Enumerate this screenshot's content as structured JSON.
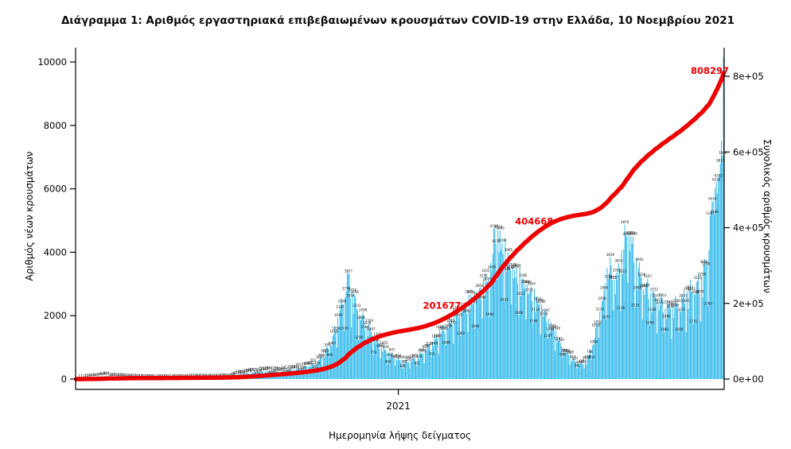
{
  "title": "Διάγραμμα 1: Αριθμός εργαστηριακά επιβεβαιωμένων κρουσμάτων COVID-19 στην Ελλάδα, 10 Νοεμβρίου 2021",
  "chart_data": {
    "type": "bar",
    "title": "Διάγραμμα 1: Αριθμός εργαστηριακά επιβεβαιωμένων κρουσμάτων COVID-19 στην Ελλάδα, 10 Νοεμβρίου 2021",
    "xlabel": "Ημερομηνία λήψης δείγματος",
    "ylabel_left": "Αριθμός νέων κρουσμάτων",
    "ylabel_right": "Συνολικός αριθμός κρουσμάτων",
    "y_left": {
      "ticks": [
        0,
        2000,
        4000,
        6000,
        8000,
        10000
      ],
      "labels": [
        "0",
        "2000",
        "4000",
        "6000",
        "8000",
        "10000"
      ],
      "max": 10000
    },
    "y_right": {
      "ticks": [
        0,
        200000,
        400000,
        600000,
        800000
      ],
      "labels": [
        "0e+00",
        "2e+05",
        "4e+05",
        "6e+05",
        "8e+05"
      ],
      "max": 800000
    },
    "x_ticks": [
      {
        "label": "2021",
        "t": 0.4976
      }
    ],
    "x_range": [
      "2020-02-26",
      "2021-11-10"
    ],
    "days": 624,
    "grid": false,
    "legend": "none",
    "bar_color": "#2ab7ea",
    "line_color": "#ed0000",
    "annotation_color": "#ed0000",
    "bar_label_color": "#101010",
    "cumulative_total": 808297,
    "weekly_pattern": [
      1.0,
      0.85,
      1.0,
      1.02,
      1.0,
      0.92,
      0.6
    ],
    "daily_new_anchors": [
      [
        0,
        3
      ],
      [
        8,
        20
      ],
      [
        15,
        45
      ],
      [
        22,
        75
      ],
      [
        27,
        95
      ],
      [
        35,
        70
      ],
      [
        45,
        45
      ],
      [
        60,
        25
      ],
      [
        75,
        16
      ],
      [
        90,
        14
      ],
      [
        105,
        22
      ],
      [
        120,
        30
      ],
      [
        135,
        33
      ],
      [
        148,
        50
      ],
      [
        157,
        151
      ],
      [
        168,
        205
      ],
      [
        182,
        258
      ],
      [
        196,
        240
      ],
      [
        210,
        310
      ],
      [
        222,
        410
      ],
      [
        232,
        520
      ],
      [
        240,
        860
      ],
      [
        247,
        1300
      ],
      [
        252,
        1900
      ],
      [
        256,
        2435
      ],
      [
        258,
        2556
      ],
      [
        261,
        3432
      ],
      [
        263,
        3049
      ],
      [
        266,
        2700
      ],
      [
        270,
        2300
      ],
      [
        277,
        1900
      ],
      [
        284,
        1500
      ],
      [
        291,
        1150
      ],
      [
        298,
        900
      ],
      [
        305,
        740
      ],
      [
        312,
        580
      ],
      [
        319,
        560
      ],
      [
        326,
        650
      ],
      [
        333,
        840
      ],
      [
        340,
        1050
      ],
      [
        347,
        1350
      ],
      [
        354,
        1630
      ],
      [
        361,
        1890
      ],
      [
        368,
        2150
      ],
      [
        375,
        2390
      ],
      [
        382,
        2600
      ],
      [
        389,
        2900
      ],
      [
        396,
        3250
      ],
      [
        399,
        3464
      ],
      [
        403,
        4963
      ],
      [
        406,
        4717
      ],
      [
        410,
        4308
      ],
      [
        415,
        3900
      ],
      [
        420,
        3600
      ],
      [
        427,
        3250
      ],
      [
        434,
        3000
      ],
      [
        441,
        2700
      ],
      [
        448,
        2300
      ],
      [
        455,
        1900
      ],
      [
        461,
        1500
      ],
      [
        468,
        1050
      ],
      [
        475,
        750
      ],
      [
        481,
        550
      ],
      [
        487,
        480
      ],
      [
        492,
        620
      ],
      [
        497,
        1100
      ],
      [
        502,
        1900
      ],
      [
        507,
        2518
      ],
      [
        512,
        3747
      ],
      [
        516,
        3400
      ],
      [
        521,
        3250
      ],
      [
        527,
        4314
      ],
      [
        532,
        4982
      ],
      [
        536,
        4100
      ],
      [
        541,
        3500
      ],
      [
        546,
        3100
      ],
      [
        551,
        2850
      ],
      [
        557,
        2600
      ],
      [
        563,
        2450
      ],
      [
        569,
        2335
      ],
      [
        575,
        2300
      ],
      [
        581,
        2450
      ],
      [
        587,
        2650
      ],
      [
        593,
        2900
      ],
      [
        599,
        3061
      ],
      [
        603,
        3222
      ],
      [
        606,
        3700
      ],
      [
        609,
        4293
      ],
      [
        611,
        5379
      ],
      [
        613,
        5344
      ],
      [
        616,
        6334
      ],
      [
        618,
        5774
      ],
      [
        619,
        6458
      ],
      [
        620,
        6902
      ],
      [
        621,
        7335
      ],
      [
        622,
        7781
      ],
      [
        623,
        10143
      ]
    ],
    "annotations": [
      {
        "label": "201677",
        "t": 0.565,
        "dy": -14
      },
      {
        "label": "404668",
        "t": 0.707,
        "dy": -14
      },
      {
        "label": "808297",
        "t": 0.978,
        "dy": -38
      }
    ]
  }
}
